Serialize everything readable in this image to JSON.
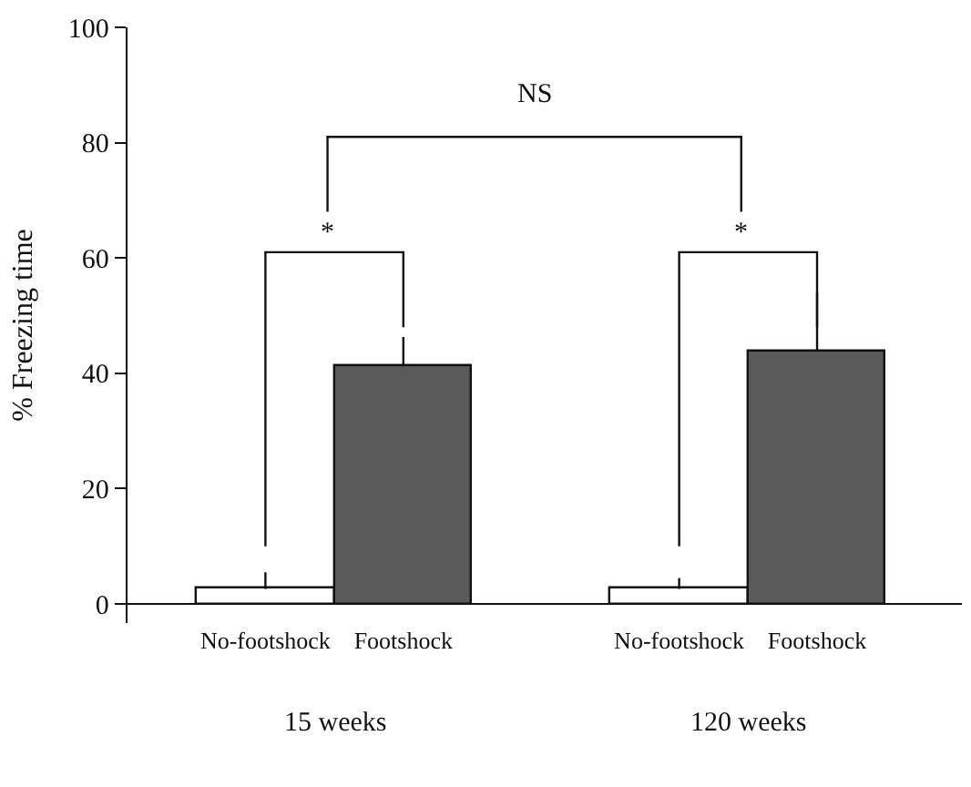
{
  "chart_data": {
    "type": "bar",
    "ylabel": "% Freezing time",
    "categories": [
      "No-footshock",
      "Footshock",
      "No-footshock",
      "Footshock"
    ],
    "values": [
      2.6,
      41.2,
      2.6,
      43.8
    ],
    "colors": [
      "#ffffff",
      "#5a5a5a",
      "#ffffff",
      "#5a5a5a"
    ],
    "errors": [
      [
        2.6,
        5.5
      ],
      [
        41.2,
        46.3
      ],
      [
        2.6,
        4.5
      ],
      [
        43.8,
        54
      ]
    ],
    "ylim": [
      -3.3,
      100
    ],
    "yticks": [
      0,
      20,
      40,
      60,
      80,
      100
    ],
    "annotations": [
      "15 weeks",
      "120 weeks",
      "*",
      "*",
      "NS"
    ]
  }
}
